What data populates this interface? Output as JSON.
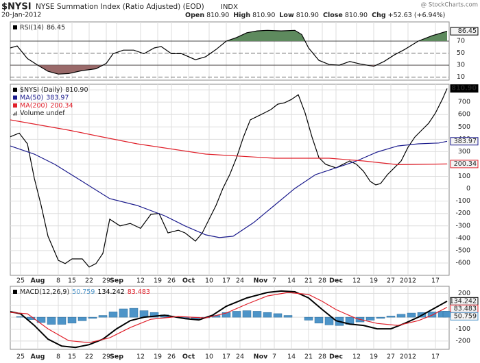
{
  "header": {
    "symbol": "$NYSI",
    "name": "NYSE Summation Index (Ratio Adjusted) (EOD)",
    "exchange": "INDX",
    "date": "20-Jan-2012",
    "watermark": "@ StockCharts.com",
    "quote": [
      {
        "label": "Open",
        "value": "810.90"
      },
      {
        "label": "High",
        "value": "810.90"
      },
      {
        "label": "Low",
        "value": "810.90"
      },
      {
        "label": "Close",
        "value": "810.90"
      },
      {
        "label": "Chg",
        "value": "+52.63 (+6.94%)"
      }
    ]
  },
  "chart_data": [
    {
      "type": "line",
      "xlim": [
        -3,
        125
      ],
      "xticks": [
        0,
        5,
        11,
        15,
        20,
        25,
        28,
        35,
        40,
        44,
        49,
        55,
        60,
        64,
        70,
        74,
        79,
        84,
        88,
        92,
        98,
        103,
        108,
        113,
        121
      ],
      "ylim": [
        5,
        102
      ],
      "yticks": [
        10,
        30,
        50,
        70
      ],
      "grid": true,
      "fills": [
        {
          "above": 70,
          "color": "#5e8a5e"
        },
        {
          "below": 30,
          "color": "#9a6a6a"
        }
      ],
      "series": [
        {
          "name": "RSI(14)",
          "color": "#000000",
          "last_label": "86.45",
          "box": "outline",
          "x": [
            -3,
            -1,
            2,
            5,
            8,
            11,
            14,
            18,
            22,
            25,
            27,
            30,
            33,
            36,
            39,
            41,
            44,
            47,
            51,
            54,
            57,
            60,
            63,
            66,
            69,
            72,
            76,
            80,
            82,
            84,
            87,
            90,
            93,
            96,
            99,
            103,
            106,
            109,
            112,
            116,
            120,
            124.4
          ],
          "values": [
            58.6,
            62,
            41,
            30,
            19.7,
            15,
            16,
            21,
            24,
            33,
            49,
            55,
            55,
            49,
            58.6,
            61,
            49,
            49,
            39,
            44,
            56,
            70,
            76,
            84,
            87,
            88,
            87,
            88,
            81,
            58.6,
            38,
            31,
            30,
            36,
            32,
            28,
            36,
            47,
            56,
            70,
            79,
            86.45
          ]
        }
      ]
    },
    {
      "type": "line",
      "xlim": [
        -3,
        125
      ],
      "xticks": [
        {
          "value": 0,
          "label": "25"
        },
        {
          "value": 5,
          "label": "Aug"
        },
        {
          "value": 11,
          "label": "8"
        },
        {
          "value": 15,
          "label": "15"
        },
        {
          "value": 20,
          "label": "22"
        },
        {
          "value": 25,
          "label": "29"
        },
        {
          "value": 28,
          "label": "Sep"
        },
        {
          "value": 35,
          "label": "12"
        },
        {
          "value": 40,
          "label": "19"
        },
        {
          "value": 44,
          "label": "26"
        },
        {
          "value": 49,
          "label": "Oct"
        },
        {
          "value": 55,
          "label": "10"
        },
        {
          "value": 60,
          "label": "17"
        },
        {
          "value": 64,
          "label": "24"
        },
        {
          "value": 70,
          "label": "Nov"
        },
        {
          "value": 74,
          "label": "7"
        },
        {
          "value": 79,
          "label": "14"
        },
        {
          "value": 84,
          "label": "21"
        },
        {
          "value": 88,
          "label": "28"
        },
        {
          "value": 92,
          "label": "Dec"
        },
        {
          "value": 98,
          "label": "12"
        },
        {
          "value": 103,
          "label": "19"
        },
        {
          "value": 108,
          "label": "27"
        },
        {
          "value": 113,
          "label": "2012"
        },
        {
          "value": 121,
          "label": "17"
        }
      ],
      "ylim": [
        -700,
        845
      ],
      "yticks": [
        -600,
        -500,
        -400,
        -300,
        -200,
        -100,
        0,
        100,
        200,
        300,
        400,
        500,
        600,
        700,
        800
      ],
      "grid": true,
      "legend_extra": "Volume undef",
      "series": [
        {
          "name": "$NYSI (Daily)",
          "color": "#000000",
          "last_label": "810.90",
          "box": "fill",
          "x": [
            -3,
            -0.4,
            2,
            4,
            6,
            8,
            11,
            13,
            15,
            18,
            20,
            22,
            24,
            26,
            29,
            32,
            35,
            38,
            40.4,
            43,
            46,
            48,
            51,
            53,
            55,
            57,
            59,
            61,
            63,
            65,
            67,
            69,
            71,
            73,
            75,
            77,
            79,
            81,
            83,
            85,
            87,
            89,
            92,
            94,
            96,
            98,
            100,
            102,
            103.6,
            105,
            107,
            109,
            111,
            113,
            115,
            117,
            119,
            121,
            123,
            124.4
          ],
          "values": [
            420,
            450,
            363,
            86,
            -135,
            -384,
            -578,
            -605,
            -567,
            -567,
            -633,
            -605,
            -523,
            -246,
            -300,
            -280,
            -320,
            -207,
            -200,
            -357,
            -335,
            -357,
            -423,
            -357,
            -246,
            -135,
            3,
            114,
            252,
            418,
            557,
            584,
            612,
            640,
            684,
            695,
            722,
            760,
            612,
            418,
            252,
            197,
            169,
            197,
            225,
            197,
            142,
            59,
            31,
            42,
            114,
            169,
            225,
            335,
            418,
            474,
            529,
            612,
            722,
            810.9
          ]
        },
        {
          "name": "MA(50)",
          "color": "#1a1a8c",
          "last_label": "383.97",
          "box": "outline",
          "x": [
            -3,
            4,
            10,
            18,
            26,
            34,
            42,
            48,
            54,
            58,
            62,
            68,
            74,
            80,
            86,
            92,
            98,
            104,
            110,
            116,
            122,
            124.4
          ],
          "values": [
            346,
            280,
            197,
            59,
            -80,
            -135,
            -218,
            -301,
            -373,
            -395,
            -384,
            -273,
            -135,
            3,
            114,
            169,
            225,
            297,
            346,
            363,
            370,
            383.97
          ]
        },
        {
          "name": "MA(200)",
          "color": "#e0202a",
          "last_label": "200.34",
          "box": "outline",
          "x": [
            -3,
            14,
            24,
            34,
            54,
            74,
            90,
            100,
            110,
            124.4
          ],
          "values": [
            557,
            474,
            418,
            363,
            280,
            247,
            247,
            225,
            195,
            200.34
          ]
        }
      ]
    },
    {
      "type": "line",
      "title": "MACD(12,26,9)",
      "xlim": [
        -3,
        125
      ],
      "xticks": [
        {
          "value": 0,
          "label": "25"
        },
        {
          "value": 5,
          "label": "Aug"
        },
        {
          "value": 11,
          "label": "8"
        },
        {
          "value": 15,
          "label": "15"
        },
        {
          "value": 20,
          "label": "22"
        },
        {
          "value": 25,
          "label": "29"
        },
        {
          "value": 28,
          "label": "Sep"
        },
        {
          "value": 35,
          "label": "12"
        },
        {
          "value": 40,
          "label": "19"
        },
        {
          "value": 44,
          "label": "26"
        },
        {
          "value": 49,
          "label": "Oct"
        },
        {
          "value": 55,
          "label": "10"
        },
        {
          "value": 60,
          "label": "17"
        },
        {
          "value": 64,
          "label": "24"
        },
        {
          "value": 70,
          "label": "Nov"
        },
        {
          "value": 74,
          "label": "7"
        },
        {
          "value": 79,
          "label": "14"
        },
        {
          "value": 84,
          "label": "21"
        },
        {
          "value": 88,
          "label": "28"
        },
        {
          "value": 92,
          "label": "Dec"
        },
        {
          "value": 98,
          "label": "12"
        },
        {
          "value": 103,
          "label": "19"
        },
        {
          "value": 108,
          "label": "27"
        },
        {
          "value": 113,
          "label": "2012"
        },
        {
          "value": 121,
          "label": "17"
        }
      ],
      "ylim": [
        -270,
        260
      ],
      "yticks": [
        -200,
        -100,
        0,
        100,
        200
      ],
      "grid": true,
      "series": [
        {
          "type": "bar",
          "color": "#4d94c8",
          "last_label": "50.759",
          "box": "outline",
          "x": [
            0,
            3,
            6,
            9,
            12,
            15,
            18,
            21,
            24,
            27,
            30,
            33,
            36,
            39,
            42,
            45,
            48,
            51,
            54,
            57,
            60,
            63,
            66,
            69,
            72,
            75,
            78,
            81,
            84,
            87,
            90,
            93,
            96,
            99,
            102,
            105,
            108,
            111,
            114,
            117,
            120,
            123,
            124.4
          ],
          "values": [
            5,
            -20,
            -45,
            -60,
            -60,
            -50,
            -30,
            -10,
            15,
            45,
            70,
            75,
            55,
            40,
            20,
            5,
            -10,
            -15,
            -5,
            15,
            40,
            50,
            55,
            50,
            40,
            30,
            15,
            0,
            -25,
            -50,
            -65,
            -70,
            -60,
            -40,
            -25,
            -10,
            10,
            25,
            35,
            40,
            45,
            50,
            50.759
          ]
        },
        {
          "color": "#000000",
          "last_label": "134.242",
          "box": "outline",
          "width": 2,
          "x": [
            -3,
            0,
            4,
            8,
            12,
            16,
            20,
            24,
            28,
            32,
            36,
            42,
            48,
            52,
            56,
            60,
            66,
            72,
            76,
            80,
            84,
            88,
            92,
            96,
            100,
            104,
            108,
            112,
            116,
            120,
            124.4
          ],
          "values": [
            46,
            29,
            -69,
            -185,
            -243,
            -254,
            -231,
            -185,
            -98,
            -29,
            0,
            17,
            -12,
            -23,
            17,
            92,
            162,
            208,
            220,
            214,
            162,
            64,
            -29,
            -58,
            -69,
            -98,
            -98,
            -52,
            0,
            64,
            134.242
          ]
        },
        {
          "color": "#e0202a",
          "last_label": "83.483",
          "box": "outline",
          "x": [
            -3,
            2,
            8,
            14,
            20,
            26,
            32,
            38,
            46,
            54,
            60,
            66,
            72,
            78,
            84,
            88,
            92,
            98,
            104,
            110,
            116,
            120,
            124.4
          ],
          "values": [
            40,
            29,
            -98,
            -197,
            -214,
            -173,
            -87,
            -17,
            6,
            -6,
            35,
            110,
            179,
            208,
            191,
            133,
            64,
            -12,
            -52,
            -69,
            -29,
            17,
            83.483
          ]
        }
      ]
    }
  ]
}
